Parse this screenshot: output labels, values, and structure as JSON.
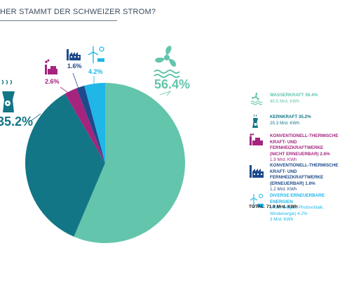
{
  "title": "HER STAMMT DER SCHWEIZER STROM?",
  "colors": {
    "wasserkraft": "#63c5ac",
    "kernkraft": "#127686",
    "konv_nicht_erneuerbar": "#a5247e",
    "konv_erneuerbar": "#1d4a8c",
    "diverse": "#1fb6e8"
  },
  "chart_data": {
    "type": "pie",
    "title": "HER STAMMT DER SCHWEIZER STROM?",
    "slices": [
      {
        "key": "wasserkraft",
        "label": "WASSERKRAFT",
        "percent": 56.4,
        "percent_label": "56.4%",
        "value": 40.5,
        "value_label": "40.5 Mrd. KWh"
      },
      {
        "key": "kernkraft",
        "label": "KERNKRAFT",
        "percent": 35.2,
        "percent_label": "35.2%",
        "value": 25.3,
        "value_label": "25.3 Mrd. KWh"
      },
      {
        "key": "konv_nicht_erneuerbar",
        "label": "KONVENTIONELL-THERMISCHE KRAFT- UND FERNHEIZKRAFTWERKE (NICHT ERNEUERBAR)",
        "percent": 2.6,
        "percent_label": "2.6%",
        "value": 1.9,
        "value_label": "1.9 Mrd. KWh"
      },
      {
        "key": "konv_erneuerbar",
        "label": "KONVENTIONELL-THERMISCHE KRAFT- UND FERNHEIZKRAFTWERKE (ERNEUERBAR)",
        "percent": 1.6,
        "percent_label": "1.6%",
        "value": 1.2,
        "value_label": "1.2 Mrd. KWh"
      },
      {
        "key": "diverse",
        "label": "DIVERSE ERNEUERBARE ENERGIEN",
        "percent": 4.2,
        "percent_label": "4.2%",
        "value": 3.0,
        "value_label": "3 Mrd. KWh"
      }
    ],
    "total_label": "TOTAL: 71.9 Mrd. KWh"
  },
  "chart_labels": {
    "wasserkraft": "56.4%",
    "kernkraft": "35.2%",
    "konv_nicht_erneuerbar": "2.6%",
    "konv_erneuerbar": "1.6%",
    "diverse": "4.2%"
  },
  "legend": [
    {
      "key": "wasserkraft",
      "icon": "hydro-icon",
      "title": "WASSERKRAFT 56.4%",
      "value": "40.5 Mrd. KWh"
    },
    {
      "key": "kernkraft",
      "icon": "nuclear-plant-icon",
      "title": "KERNKRAFT 35.2%",
      "value": "25.3 Mrd. KWh"
    },
    {
      "key": "konv_nicht_erneuerbar",
      "icon": "thermal-plant-icon",
      "title": "KONVENTIONELL-THERMISCHE\nKRAFT- UND FERNHEIZKRAFTWERKE\n(NICHT ERNEUERBAR) 2.6%",
      "value": "1.9 Mrd. KWh"
    },
    {
      "key": "konv_erneuerbar",
      "icon": "factory-icon",
      "title": "KONVENTIONELL-THERMISCHE\nKRAFT- UND FERNHEIZKRAFTWERKE\n(ERNEUERBAR) 1.6%",
      "value": "1.2 Mrd. KWh"
    },
    {
      "key": "diverse",
      "icon": "wind-solar-icon",
      "title": "DIVERSE ERNEUERBARE ENERGIEN",
      "value": "(Holz, Biogas, Photovoltaik,\nWindenergie) 4.2%\n3 Mrd. KWh"
    }
  ],
  "total": "TOTAL: 71.9 Mrd. KWh"
}
